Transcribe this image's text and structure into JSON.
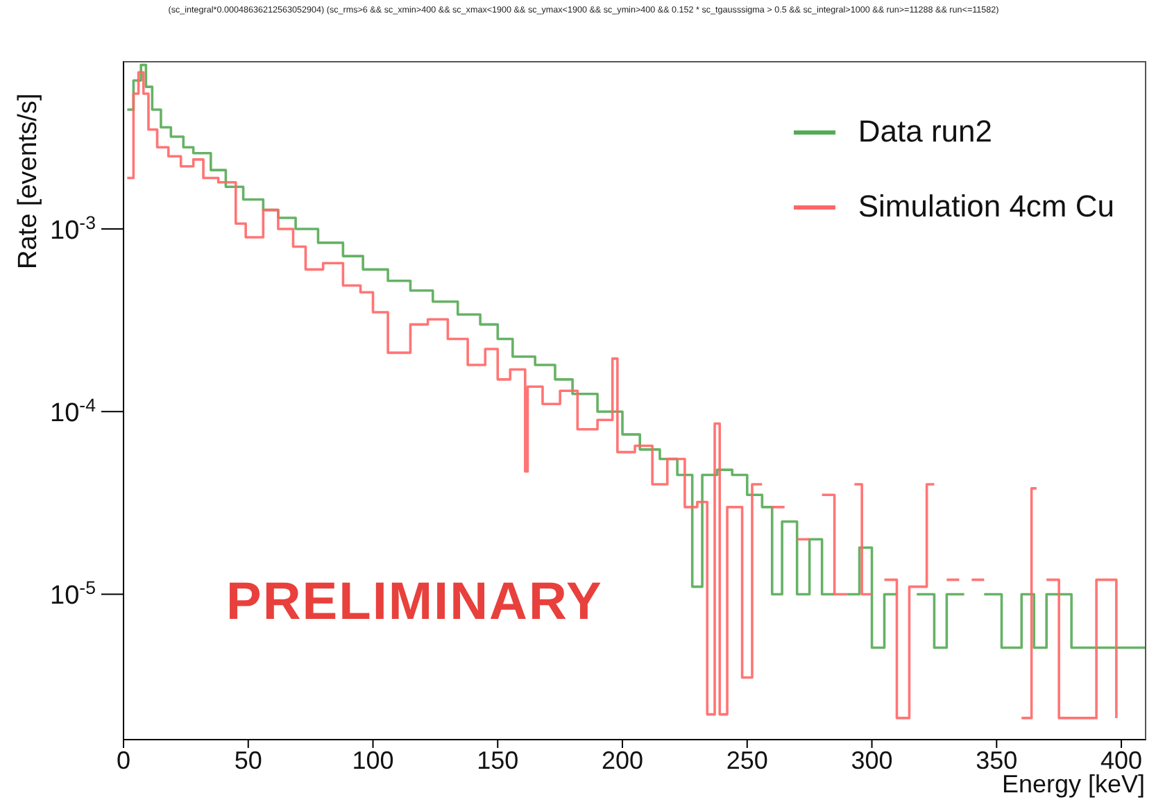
{
  "chart_data": {
    "type": "step",
    "title": "(sc_integral*0.00048636212563052904) (sc_rms>6 && sc_xmin>400 && sc_xmax<1900 && sc_ymax<1900 && sc_ymin>400 && 0.152 * sc_tgausssigma > 0.5 && sc_integral>1000 && run>=11288 && run<=11582)",
    "xlabel": "Energy [keV]",
    "ylabel": "Rate [events/s]",
    "annotations": [
      "PRELIMINARY"
    ],
    "log": "y",
    "legend": "top right",
    "xlim": [
      0,
      410
    ],
    "xticks": [
      0,
      50,
      100,
      150,
      200,
      250,
      300,
      350,
      400
    ],
    "ylim": [
      1.6e-06,
      0.0083
    ],
    "yticks": [
      {
        "value": 0.001,
        "label": "10$^{-3}$"
      },
      {
        "value": 0.0001,
        "label": "10$^{-4}$"
      },
      {
        "value": 1e-05,
        "label": "10$^{-5}$"
      }
    ],
    "series": [
      {
        "name": "Data run2",
        "color": "#55aa55",
        "x": [
          1.5,
          4,
          7,
          9,
          11.5,
          15,
          19,
          24,
          28,
          35,
          41,
          48,
          56,
          62,
          69,
          78,
          88,
          96,
          106,
          115,
          124,
          134,
          143,
          150,
          156,
          165,
          173,
          180,
          190,
          200,
          207,
          215,
          222,
          228,
          232,
          238,
          244,
          250,
          256,
          260,
          264,
          270,
          275,
          280,
          285,
          290,
          295,
          300,
          305,
          310,
          318,
          325,
          330,
          337,
          345,
          352,
          360,
          365,
          370,
          380,
          390,
          400,
          410
        ],
        "values": [
          0.0045,
          0.0065,
          0.0079,
          0.006,
          0.0045,
          0.0036,
          0.0032,
          0.0028,
          0.0026,
          0.0021,
          0.0017,
          0.00145,
          0.00127,
          0.00115,
          0.001,
          0.00084,
          0.00071,
          0.0006,
          0.00052,
          0.00046,
          0.0004,
          0.00034,
          0.0003,
          0.00025,
          0.0002,
          0.00018,
          0.00015,
          0.000125,
          0.0001,
          7.5e-05,
          6.2e-05,
          5.5e-05,
          4.5e-05,
          1.1e-05,
          4.5e-05,
          4.8e-05,
          4.5e-05,
          3.5e-05,
          3e-05,
          1e-05,
          2.5e-05,
          1e-05,
          2e-05,
          1e-05,
          null,
          1e-05,
          1.8e-05,
          5.1e-06,
          1e-05,
          null,
          1e-05,
          5.1e-06,
          1e-05,
          null,
          1e-05,
          5.1e-06,
          1e-05,
          5.1e-06,
          1e-05,
          5.1e-06,
          5.1e-06,
          5.1e-06,
          5.1e-06
        ]
      },
      {
        "name": "Simulation 4cm Cu",
        "color": "#ff6666",
        "x": [
          1.5,
          4,
          6,
          8,
          10,
          13.5,
          18,
          23,
          28,
          32,
          38,
          45,
          49,
          56,
          62,
          68,
          73,
          80,
          88,
          95,
          100,
          106,
          115,
          122,
          130,
          138,
          145,
          150,
          155,
          161,
          162,
          168,
          175,
          182,
          190,
          196,
          198,
          205,
          212,
          218,
          225,
          230,
          234,
          237,
          239,
          242,
          248,
          252,
          256,
          260,
          265,
          270,
          275,
          280,
          285,
          290,
          293,
          296,
          300,
          305,
          310,
          315,
          322,
          325,
          330,
          335,
          340,
          345,
          360,
          364,
          366,
          370,
          375,
          390,
          398
        ],
        "values": [
          0.0019,
          0.0055,
          0.0072,
          0.0055,
          0.0035,
          0.0028,
          0.0025,
          0.0022,
          0.0024,
          0.0019,
          0.0018,
          0.00107,
          0.0009,
          0.00127,
          0.001,
          0.0008,
          0.0006,
          0.00065,
          0.00049,
          0.00045,
          0.00035,
          0.00021,
          0.0003,
          0.00032,
          0.00025,
          0.00018,
          0.00022,
          0.00015,
          0.00017,
          4.7e-05,
          0.000137,
          0.00011,
          0.00013,
          8e-05,
          9e-05,
          0.000195,
          6e-05,
          6.5e-05,
          4e-05,
          5.5e-05,
          3e-05,
          3.2e-05,
          2.2e-06,
          8.6e-05,
          2.2e-06,
          3e-05,
          3.5e-06,
          4e-05,
          null,
          3e-05,
          null,
          2e-05,
          null,
          3.5e-05,
          1e-05,
          null,
          4e-05,
          1e-05,
          null,
          1.2e-05,
          2.1e-06,
          1.1e-05,
          4e-05,
          null,
          1.2e-05,
          null,
          1.2e-05,
          null,
          2.1e-06,
          3.8e-05,
          null,
          1.2e-05,
          2.1e-06,
          1.2e-05,
          2.1e-06
        ]
      }
    ]
  }
}
